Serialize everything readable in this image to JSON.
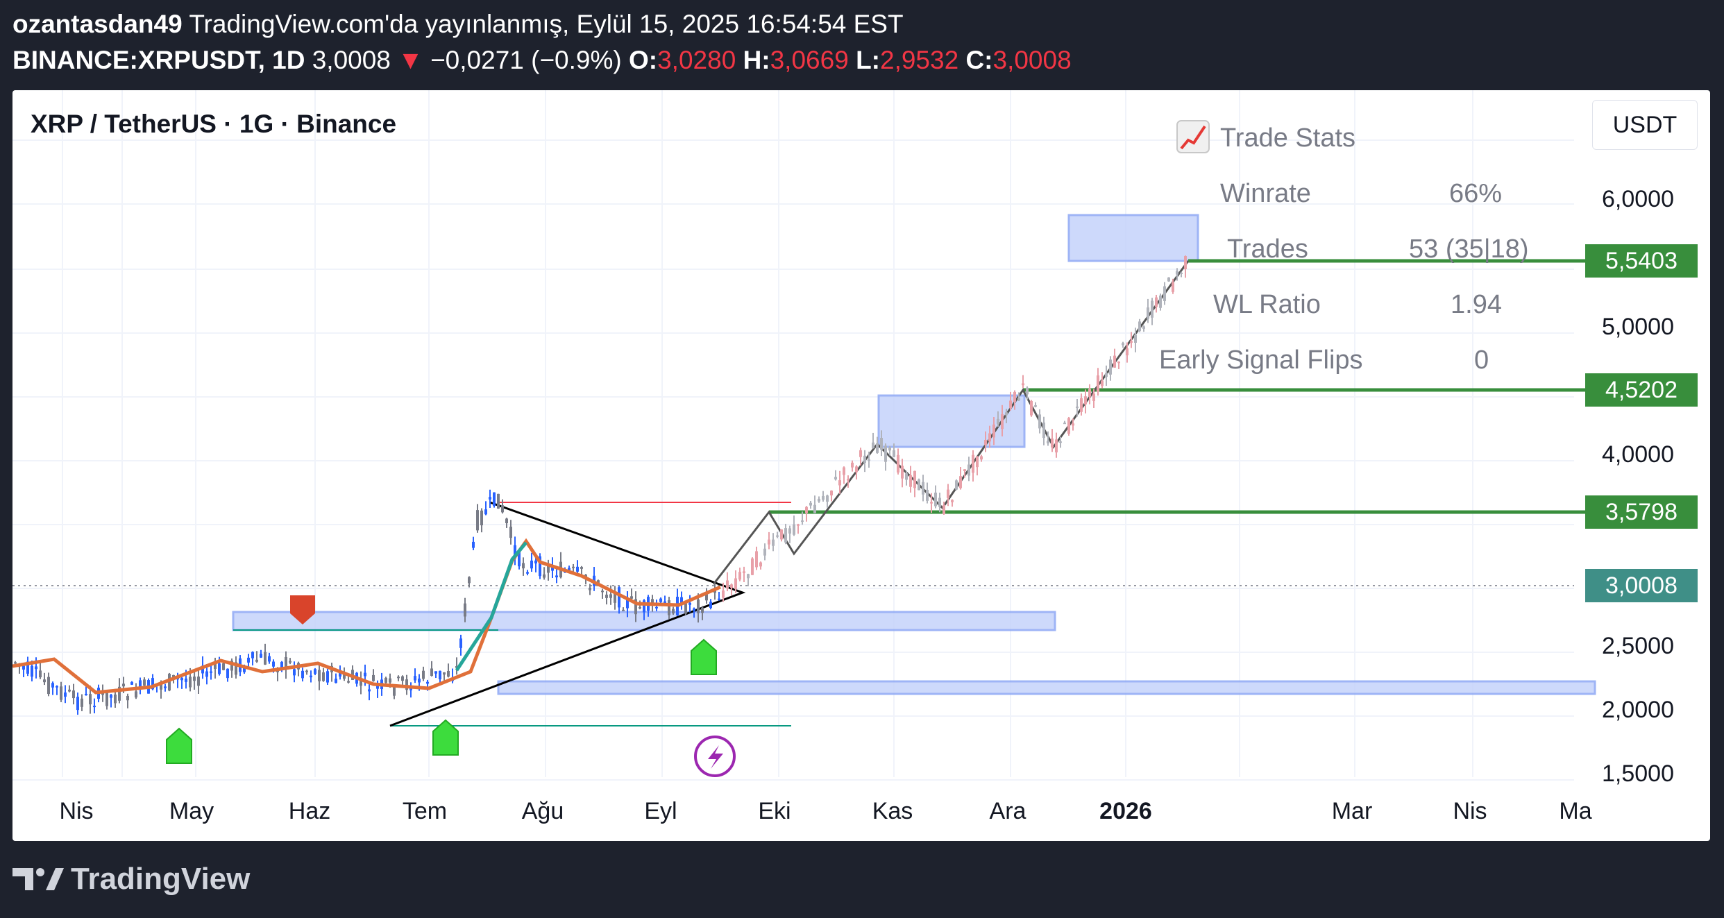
{
  "header": {
    "author": "ozantasdan49",
    "published": "TradingView.com'da yayınlanmış, Eylül 15, 2025 16:54:54 EST",
    "symbol": "BINANCE:XRPUSDT, 1D",
    "last": "3,0008",
    "arrow": "▼",
    "change": "−0,0271 (−0.9%)",
    "o_label": "O:",
    "o": "3,0280",
    "h_label": "H:",
    "h": "3,0669",
    "l_label": "L:",
    "l": "2,9532",
    "c_label": "C:",
    "c": "3,0008"
  },
  "chart": {
    "title": "XRP / TetherUS · 1G · Binance",
    "currency_button": "USDT",
    "y_labels": [
      "6,0000",
      "5,0000",
      "4,0000",
      "2,5000",
      "2,0000",
      "1,5000"
    ],
    "price_tags": [
      {
        "label": "5,5403",
        "color": "#388e3c"
      },
      {
        "label": "4,5202",
        "color": "#388e3c"
      },
      {
        "label": "3,5798",
        "color": "#388e3c"
      },
      {
        "label": "3,0008",
        "color": "#3f8f87"
      }
    ],
    "x_labels": [
      "Nis",
      "May",
      "Haz",
      "Tem",
      "Ağu",
      "Eyl",
      "Eki",
      "Kas",
      "Ara",
      "2026",
      "Mar",
      "Nis",
      "Ma"
    ],
    "trade_stats": {
      "title": "Trade Stats",
      "icon": "chart-increasing-icon",
      "rows": [
        {
          "label": "Winrate",
          "value": "66%"
        },
        {
          "label": "Trades",
          "value": "53 (35|18)"
        },
        {
          "label": "WL Ratio",
          "value": "1.94"
        },
        {
          "label": "Early Signal Flips",
          "value": "0"
        }
      ]
    },
    "colors": {
      "up": "#2962ff",
      "down": "#787b86",
      "level": "#388e3c",
      "zone": "#c5d3fb"
    }
  },
  "footer": {
    "brand": "TradingView"
  }
}
